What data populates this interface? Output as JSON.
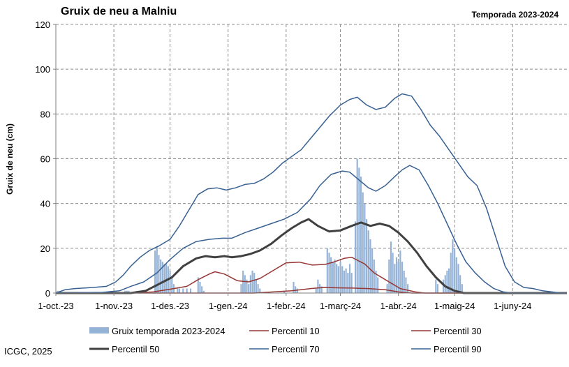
{
  "header": {
    "title": "Gruix de neu a Malniu",
    "season": "Temporada 2023-2024"
  },
  "footer": {
    "credit": "ICGC, 2025"
  },
  "chart_data": {
    "type": "bar+line",
    "title": "Gruix de neu a Malniu",
    "subtitle": "Temporada 2023-2024",
    "xlabel": "",
    "ylabel": "Gruix de neu (cm)",
    "ylim": [
      0,
      120
    ],
    "yticks": [
      0,
      20,
      40,
      60,
      80,
      100,
      120
    ],
    "xlim": [
      "2023-10-01",
      "2024-06-30"
    ],
    "xticks": [
      {
        "date": "2023-10-01",
        "label": "1-oct.-23"
      },
      {
        "date": "2023-11-01",
        "label": "1-nov.-23"
      },
      {
        "date": "2023-12-01",
        "label": "1-des.-23"
      },
      {
        "date": "2024-01-01",
        "label": "1-gen.-24"
      },
      {
        "date": "2024-02-01",
        "label": "1-febr.-24"
      },
      {
        "date": "2024-03-01",
        "label": "1-març-24"
      },
      {
        "date": "2024-04-01",
        "label": "1-abr.-24"
      },
      {
        "date": "2024-05-01",
        "label": "1-maig-24"
      },
      {
        "date": "2024-06-01",
        "label": "1-juny-24"
      }
    ],
    "grid": true,
    "legend_position": "bottom",
    "bars": {
      "name": "Gruix temporada 2023-2024",
      "color": "#95b3d7",
      "points": [
        [
          "2023-10-02",
          1
        ],
        [
          "2023-11-07",
          1
        ],
        [
          "2023-11-08",
          1
        ],
        [
          "2023-11-09",
          1
        ],
        [
          "2023-11-23",
          19
        ],
        [
          "2023-11-24",
          21
        ],
        [
          "2023-11-25",
          17
        ],
        [
          "2023-11-26",
          15
        ],
        [
          "2023-11-27",
          14
        ],
        [
          "2023-11-28",
          13
        ],
        [
          "2023-11-29",
          13
        ],
        [
          "2023-11-30",
          12
        ],
        [
          "2023-12-01",
          10
        ],
        [
          "2023-12-02",
          7
        ],
        [
          "2023-12-03",
          4
        ],
        [
          "2023-12-05",
          2
        ],
        [
          "2023-12-06",
          2
        ],
        [
          "2023-12-08",
          2
        ],
        [
          "2023-12-10",
          2
        ],
        [
          "2023-12-12",
          2
        ],
        [
          "2023-12-16",
          7
        ],
        [
          "2023-12-17",
          5
        ],
        [
          "2023-12-18",
          3
        ],
        [
          "2023-12-19",
          1
        ],
        [
          "2024-01-08",
          4
        ],
        [
          "2024-01-09",
          10
        ],
        [
          "2024-01-10",
          8
        ],
        [
          "2024-01-11",
          6
        ],
        [
          "2024-01-12",
          4
        ],
        [
          "2024-01-13",
          8
        ],
        [
          "2024-01-14",
          10
        ],
        [
          "2024-01-15",
          9
        ],
        [
          "2024-01-16",
          6
        ],
        [
          "2024-01-17",
          4
        ],
        [
          "2024-01-18",
          2
        ],
        [
          "2024-01-31",
          1
        ],
        [
          "2024-02-05",
          5
        ],
        [
          "2024-02-06",
          3
        ],
        [
          "2024-02-07",
          2
        ],
        [
          "2024-02-17",
          2
        ],
        [
          "2024-02-18",
          6
        ],
        [
          "2024-02-19",
          4
        ],
        [
          "2024-02-20",
          3
        ],
        [
          "2024-02-23",
          20
        ],
        [
          "2024-02-24",
          18
        ],
        [
          "2024-02-25",
          16
        ],
        [
          "2024-02-26",
          14
        ],
        [
          "2024-02-27",
          15
        ],
        [
          "2024-02-28",
          13
        ],
        [
          "2024-02-29",
          12
        ],
        [
          "2024-03-01",
          14
        ],
        [
          "2024-03-02",
          12
        ],
        [
          "2024-03-03",
          10
        ],
        [
          "2024-03-04",
          11
        ],
        [
          "2024-03-05",
          9
        ],
        [
          "2024-03-06",
          13
        ],
        [
          "2024-03-07",
          9
        ],
        [
          "2024-03-09",
          32
        ],
        [
          "2024-03-10",
          60
        ],
        [
          "2024-03-11",
          56
        ],
        [
          "2024-03-12",
          52
        ],
        [
          "2024-03-13",
          45
        ],
        [
          "2024-03-14",
          40
        ],
        [
          "2024-03-15",
          33
        ],
        [
          "2024-03-16",
          28
        ],
        [
          "2024-03-17",
          24
        ],
        [
          "2024-03-18",
          20
        ],
        [
          "2024-03-19",
          15
        ],
        [
          "2024-03-20",
          10
        ],
        [
          "2024-03-21",
          7
        ],
        [
          "2024-03-26",
          4
        ],
        [
          "2024-03-27",
          15
        ],
        [
          "2024-03-28",
          23
        ],
        [
          "2024-03-29",
          18
        ],
        [
          "2024-03-30",
          13
        ],
        [
          "2024-03-31",
          16
        ],
        [
          "2024-04-01",
          14
        ],
        [
          "2024-04-02",
          19
        ],
        [
          "2024-04-03",
          14
        ],
        [
          "2024-04-04",
          10
        ],
        [
          "2024-04-05",
          7
        ],
        [
          "2024-04-06",
          4
        ],
        [
          "2024-04-21",
          6
        ],
        [
          "2024-04-22",
          4
        ],
        [
          "2024-04-25",
          6
        ],
        [
          "2024-04-26",
          8
        ],
        [
          "2024-04-27",
          10
        ],
        [
          "2024-04-28",
          11
        ],
        [
          "2024-04-29",
          18
        ],
        [
          "2024-04-30",
          24
        ],
        [
          "2024-05-01",
          20
        ],
        [
          "2024-05-02",
          16
        ],
        [
          "2024-05-03",
          13
        ],
        [
          "2024-05-04",
          8
        ],
        [
          "2024-05-05",
          4
        ]
      ]
    },
    "series": [
      {
        "name": "Percentil 10",
        "color": "#953735",
        "width": 1.5,
        "points": [
          [
            "2023-10-01",
            0
          ],
          [
            "2024-01-15",
            0
          ],
          [
            "2024-01-25",
            0.5
          ],
          [
            "2024-02-04",
            1
          ],
          [
            "2024-02-14",
            2
          ],
          [
            "2024-02-21",
            2.5
          ],
          [
            "2024-03-01",
            2.3
          ],
          [
            "2024-03-08",
            2.2
          ],
          [
            "2024-03-16",
            2
          ],
          [
            "2024-03-25",
            1.5
          ],
          [
            "2024-04-01",
            0.5
          ],
          [
            "2024-04-08",
            0
          ],
          [
            "2024-06-30",
            0
          ]
        ]
      },
      {
        "name": "Percentil 30",
        "color": "#953735",
        "width": 1.5,
        "points": [
          [
            "2023-10-01",
            0
          ],
          [
            "2023-11-08",
            0
          ],
          [
            "2023-11-22",
            0.5
          ],
          [
            "2023-12-03",
            2
          ],
          [
            "2023-12-10",
            3
          ],
          [
            "2023-12-16",
            6
          ],
          [
            "2023-12-22",
            8.5
          ],
          [
            "2023-12-25",
            9.5
          ],
          [
            "2023-12-30",
            8.5
          ],
          [
            "2024-01-06",
            5.5
          ],
          [
            "2024-01-12",
            5
          ],
          [
            "2024-01-18",
            6.5
          ],
          [
            "2024-01-25",
            10
          ],
          [
            "2024-02-01",
            13.5
          ],
          [
            "2024-02-08",
            13.8
          ],
          [
            "2024-02-15",
            12.5
          ],
          [
            "2024-02-22",
            12.8
          ],
          [
            "2024-02-27",
            14
          ],
          [
            "2024-03-03",
            15.5
          ],
          [
            "2024-03-07",
            16
          ],
          [
            "2024-03-14",
            13
          ],
          [
            "2024-03-19",
            9
          ],
          [
            "2024-03-25",
            6
          ],
          [
            "2024-04-02",
            2
          ],
          [
            "2024-04-10",
            0.5
          ],
          [
            "2024-04-15",
            0
          ],
          [
            "2024-06-30",
            0
          ]
        ]
      },
      {
        "name": "Percentil 50",
        "color": "#404040",
        "width": 3,
        "points": [
          [
            "2023-10-01",
            0
          ],
          [
            "2023-11-10",
            0
          ],
          [
            "2023-11-18",
            1
          ],
          [
            "2023-11-25",
            4
          ],
          [
            "2023-12-02",
            7
          ],
          [
            "2023-12-08",
            12
          ],
          [
            "2023-12-15",
            15.5
          ],
          [
            "2023-12-20",
            16.5
          ],
          [
            "2023-12-25",
            16
          ],
          [
            "2023-12-30",
            16.5
          ],
          [
            "2024-01-03",
            16
          ],
          [
            "2024-01-08",
            16.5
          ],
          [
            "2024-01-13",
            17.5
          ],
          [
            "2024-01-18",
            19
          ],
          [
            "2024-01-24",
            22
          ],
          [
            "2024-01-30",
            26
          ],
          [
            "2024-02-04",
            29
          ],
          [
            "2024-02-09",
            31.5
          ],
          [
            "2024-02-13",
            33
          ],
          [
            "2024-02-18",
            30
          ],
          [
            "2024-02-24",
            27.5
          ],
          [
            "2024-03-01",
            28
          ],
          [
            "2024-03-07",
            30
          ],
          [
            "2024-03-12",
            31.5
          ],
          [
            "2024-03-17",
            30
          ],
          [
            "2024-03-22",
            31
          ],
          [
            "2024-03-27",
            30
          ],
          [
            "2024-04-01",
            27
          ],
          [
            "2024-04-06",
            23
          ],
          [
            "2024-04-11",
            18
          ],
          [
            "2024-04-16",
            12
          ],
          [
            "2024-04-21",
            7
          ],
          [
            "2024-04-26",
            3
          ],
          [
            "2024-05-01",
            1
          ],
          [
            "2024-05-06",
            0
          ],
          [
            "2024-06-30",
            0
          ]
        ]
      },
      {
        "name": "Percentil 70",
        "color": "#376092",
        "width": 1.5,
        "points": [
          [
            "2023-10-01",
            0
          ],
          [
            "2023-10-26",
            0.3
          ],
          [
            "2023-11-04",
            1
          ],
          [
            "2023-11-10",
            3
          ],
          [
            "2023-11-17",
            5
          ],
          [
            "2023-11-24",
            9
          ],
          [
            "2023-12-01",
            15
          ],
          [
            "2023-12-08",
            20
          ],
          [
            "2023-12-15",
            23
          ],
          [
            "2023-12-22",
            24
          ],
          [
            "2023-12-29",
            24.5
          ],
          [
            "2024-01-03",
            24.5
          ],
          [
            "2024-01-10",
            27
          ],
          [
            "2024-01-17",
            29
          ],
          [
            "2024-01-24",
            31
          ],
          [
            "2024-01-31",
            33
          ],
          [
            "2024-02-07",
            36
          ],
          [
            "2024-02-14",
            42
          ],
          [
            "2024-02-19",
            48
          ],
          [
            "2024-02-25",
            53
          ],
          [
            "2024-03-02",
            54.5
          ],
          [
            "2024-03-06",
            54
          ],
          [
            "2024-03-11",
            50.5
          ],
          [
            "2024-03-16",
            47
          ],
          [
            "2024-03-20",
            45.5
          ],
          [
            "2024-03-25",
            48
          ],
          [
            "2024-03-30",
            52
          ],
          [
            "2024-04-03",
            55
          ],
          [
            "2024-04-07",
            57
          ],
          [
            "2024-04-12",
            55
          ],
          [
            "2024-04-17",
            48
          ],
          [
            "2024-04-22",
            40
          ],
          [
            "2024-04-27",
            31
          ],
          [
            "2024-05-02",
            22
          ],
          [
            "2024-05-07",
            14
          ],
          [
            "2024-05-12",
            9
          ],
          [
            "2024-05-17",
            5
          ],
          [
            "2024-05-22",
            2
          ],
          [
            "2024-05-27",
            0.5
          ],
          [
            "2024-06-01",
            0
          ],
          [
            "2024-06-30",
            0
          ]
        ]
      },
      {
        "name": "Percentil 90",
        "color": "#376092",
        "width": 1.5,
        "points": [
          [
            "2023-10-01",
            0
          ],
          [
            "2023-10-06",
            1.5
          ],
          [
            "2023-10-11",
            2
          ],
          [
            "2023-10-21",
            2.5
          ],
          [
            "2023-10-28",
            3
          ],
          [
            "2023-11-02",
            5
          ],
          [
            "2023-11-06",
            8
          ],
          [
            "2023-11-10",
            12
          ],
          [
            "2023-11-15",
            16
          ],
          [
            "2023-11-20",
            19
          ],
          [
            "2023-11-25",
            21
          ],
          [
            "2023-12-01",
            24
          ],
          [
            "2023-12-06",
            30
          ],
          [
            "2023-12-11",
            37
          ],
          [
            "2023-12-16",
            44
          ],
          [
            "2023-12-21",
            46.5
          ],
          [
            "2023-12-26",
            47
          ],
          [
            "2023-12-31",
            46
          ],
          [
            "2024-01-05",
            47
          ],
          [
            "2024-01-10",
            48.5
          ],
          [
            "2024-01-15",
            49
          ],
          [
            "2024-01-20",
            51
          ],
          [
            "2024-01-25",
            54
          ],
          [
            "2024-01-30",
            58
          ],
          [
            "2024-02-04",
            61
          ],
          [
            "2024-02-09",
            64
          ],
          [
            "2024-02-14",
            69
          ],
          [
            "2024-02-19",
            74
          ],
          [
            "2024-02-24",
            79
          ],
          [
            "2024-03-01",
            84
          ],
          [
            "2024-03-06",
            86.5
          ],
          [
            "2024-03-10",
            87.5
          ],
          [
            "2024-03-15",
            84
          ],
          [
            "2024-03-20",
            82
          ],
          [
            "2024-03-25",
            83
          ],
          [
            "2024-03-30",
            87
          ],
          [
            "2024-04-03",
            89
          ],
          [
            "2024-04-08",
            88
          ],
          [
            "2024-04-13",
            82
          ],
          [
            "2024-04-18",
            75
          ],
          [
            "2024-04-23",
            70
          ],
          [
            "2024-04-28",
            64
          ],
          [
            "2024-05-03",
            58
          ],
          [
            "2024-05-08",
            52
          ],
          [
            "2024-05-13",
            48
          ],
          [
            "2024-05-18",
            38
          ],
          [
            "2024-05-23",
            25
          ],
          [
            "2024-05-28",
            12
          ],
          [
            "2024-06-02",
            5
          ],
          [
            "2024-06-07",
            2.5
          ],
          [
            "2024-06-12",
            2
          ],
          [
            "2024-06-17",
            1
          ],
          [
            "2024-06-22",
            0.5
          ],
          [
            "2024-06-27",
            0
          ],
          [
            "2024-06-30",
            0
          ]
        ]
      }
    ]
  }
}
